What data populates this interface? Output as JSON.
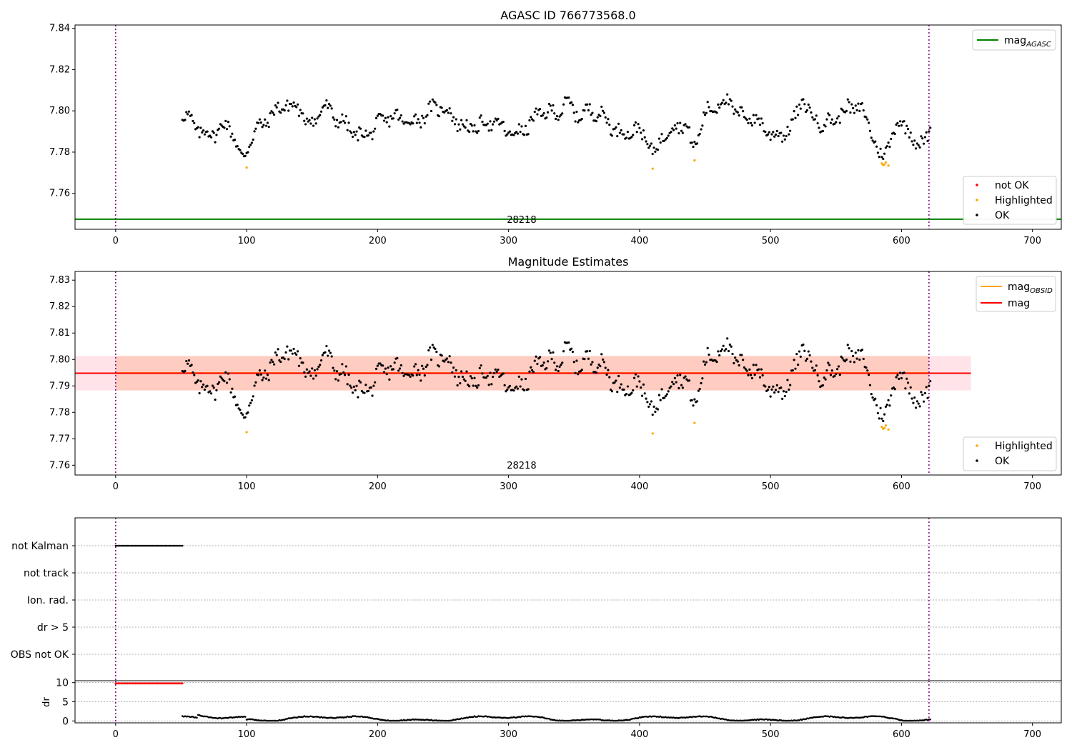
{
  "chart_data": [
    {
      "type": "scatter",
      "title": "AGASC ID 766773568.0",
      "xlim": [
        -31,
        722
      ],
      "ylim": [
        7.7426,
        7.8416
      ],
      "xticks": [
        0,
        100,
        200,
        300,
        400,
        500,
        600,
        700
      ],
      "yticks": [
        7.76,
        7.78,
        7.8,
        7.82,
        7.84
      ],
      "ytick_labels": [
        "7.76",
        "7.78",
        "7.80",
        "7.82",
        "7.84"
      ],
      "grid": false,
      "obsid_label": "28218",
      "obsid_boundaries": [
        0,
        621
      ],
      "lines": [
        {
          "name": "mag_AGASC",
          "legend_main": "mag",
          "legend_sub": "AGASC",
          "color": "#008000",
          "y": 7.7475,
          "x_range": [
            -31,
            722
          ]
        }
      ],
      "legend_lines_placement": "top-right",
      "points_legend": [
        {
          "label": "not OK",
          "color": "#ff0000"
        },
        {
          "label": "Highlighted",
          "color": "#ffa500"
        },
        {
          "label": "OK",
          "color": "#000000"
        }
      ],
      "legend_points_placement": "bottom-right",
      "series": [
        {
          "name": "OK",
          "color": "#000000",
          "generated": "star_ok"
        },
        {
          "name": "Highlighted",
          "color": "#ffa500",
          "x": [
            100,
            410,
            442,
            585,
            586,
            587,
            588,
            590
          ],
          "y": [
            7.7725,
            7.772,
            7.776,
            7.7745,
            7.7738,
            7.774,
            7.775,
            7.7735
          ]
        }
      ]
    },
    {
      "type": "scatter",
      "title": "Magnitude Estimates",
      "xlim": [
        -31,
        722
      ],
      "ylim": [
        7.7563,
        7.8333
      ],
      "xticks": [
        0,
        100,
        200,
        300,
        400,
        500,
        600,
        700
      ],
      "yticks": [
        7.76,
        7.77,
        7.78,
        7.79,
        7.8,
        7.81,
        7.82,
        7.83
      ],
      "ytick_labels": [
        "7.76",
        "7.77",
        "7.78",
        "7.79",
        "7.80",
        "7.81",
        "7.82",
        "7.83"
      ],
      "grid": false,
      "obsid_label": "28218",
      "obsid_boundaries": [
        0,
        621
      ],
      "lines": [
        {
          "name": "mag_OBSID",
          "legend_main": "mag",
          "legend_sub": "OBSID",
          "color": "#ffa500",
          "y": 7.7949,
          "x_range": [
            0,
            621
          ]
        },
        {
          "name": "mag",
          "legend_main": "mag",
          "legend_sub": "",
          "color": "#ff0000",
          "y": 7.7948,
          "x_range": [
            -31,
            653
          ]
        }
      ],
      "bands": [
        {
          "name": "mag_band",
          "color": "#ffc0cb",
          "opacity": 0.45,
          "y_range": [
            7.7883,
            7.8013
          ],
          "x_range": [
            -31,
            653
          ]
        },
        {
          "name": "mag_OBSID_band",
          "color": "#ffa07a",
          "opacity": 0.35,
          "y_range": [
            7.7883,
            7.8013
          ],
          "x_range": [
            0,
            621
          ]
        }
      ],
      "legend_lines_placement": "top-right",
      "points_legend": [
        {
          "label": "Highlighted",
          "color": "#ffa500"
        },
        {
          "label": "OK",
          "color": "#000000"
        }
      ],
      "legend_points_placement": "bottom-right",
      "series": [
        {
          "name": "OK",
          "color": "#000000",
          "generated": "star_ok"
        },
        {
          "name": "Highlighted",
          "color": "#ffa500",
          "x": [
            100,
            410,
            442,
            585,
            586,
            587,
            588,
            590
          ],
          "y": [
            7.7725,
            7.772,
            7.776,
            7.7745,
            7.7738,
            7.774,
            7.775,
            7.7735
          ]
        }
      ]
    },
    {
      "type": "scatter",
      "title": "",
      "xlim": [
        -31,
        722
      ],
      "categories": [
        "not Kalman",
        "not track",
        "Ion. rad.",
        "dr > 5",
        "OBS not OK"
      ],
      "flags": {
        "not Kalman": [
          0,
          51
        ]
      },
      "grid": true,
      "obsid_boundaries": [
        0,
        621
      ]
    },
    {
      "type": "scatter",
      "title": "",
      "ylabel": "dr",
      "xlim": [
        -31,
        722
      ],
      "ylim": [
        -0.5,
        10.5
      ],
      "yticks": [
        0,
        5,
        10
      ],
      "ytick_labels": [
        "0",
        "5",
        "10"
      ],
      "xticks": [
        0,
        100,
        200,
        300,
        400,
        500,
        600,
        700
      ],
      "grid": true,
      "obsid_boundaries": [
        0,
        621
      ],
      "series": [
        {
          "name": "dr_high",
          "color": "#ff0000",
          "x_range": [
            0,
            51
          ],
          "y": 9.8
        },
        {
          "name": "dr",
          "color": "#000000",
          "x_range": [
            51,
            622
          ],
          "y_approx": [
            0.1,
            1.8
          ]
        }
      ]
    }
  ]
}
